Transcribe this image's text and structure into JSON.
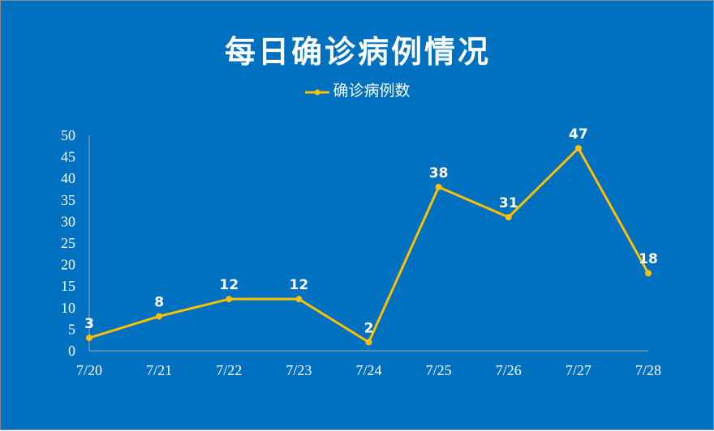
{
  "chart_data": {
    "type": "line",
    "title": "每日确诊病例情况",
    "xlabel": "",
    "ylabel": "",
    "categories": [
      "7/20",
      "7/21",
      "7/22",
      "7/23",
      "7/24",
      "7/25",
      "7/26",
      "7/27",
      "7/28"
    ],
    "series": [
      {
        "name": "确诊病例数",
        "values": [
          3,
          8,
          12,
          12,
          2,
          38,
          31,
          47,
          18
        ],
        "color": "#FFC000"
      }
    ],
    "ylim": [
      0,
      50
    ],
    "yticks": [
      0,
      5,
      10,
      15,
      20,
      25,
      30,
      35,
      40,
      45,
      50
    ],
    "grid": false,
    "legend_position": "top",
    "data_labels": true,
    "background_color": "#0070C0",
    "text_color": "#FFFFFF",
    "axis_color": "#A6A6A6"
  }
}
